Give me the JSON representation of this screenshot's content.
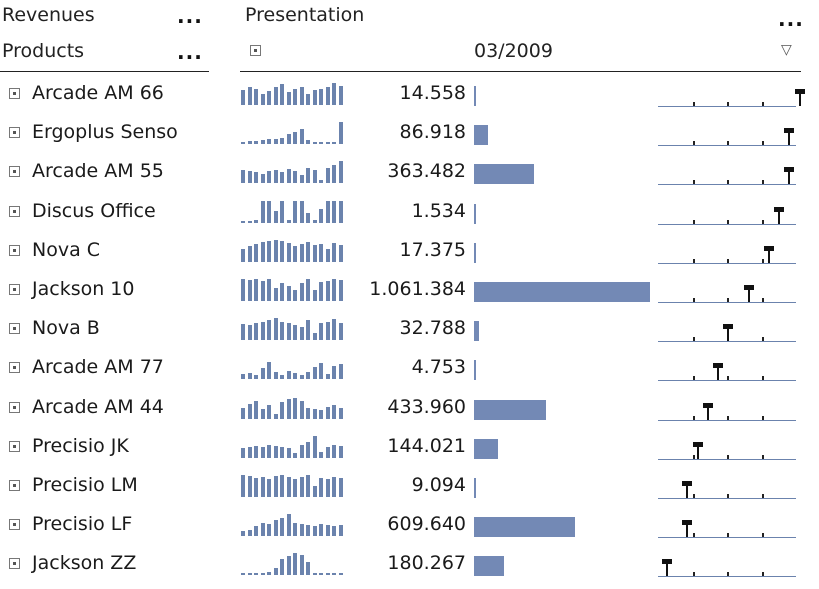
{
  "header": {
    "measure_label": "Revenues",
    "dimension_label": "Products",
    "presentation_label": "Presentation",
    "period_label": "03/2009",
    "more_dots": "...",
    "filter_icon": "▽"
  },
  "colors": {
    "bar": "#7389b5",
    "spark": "#6b83ad",
    "line": "#222222"
  },
  "table": {
    "max_value": 1061384,
    "rows": [
      {
        "label": "Arcade AM 66",
        "value_text": "14.558",
        "value": 14558,
        "rank": 13,
        "spark": [
          0.7,
          0.8,
          0.75,
          0.5,
          0.65,
          0.8,
          0.95,
          0.6,
          0.75,
          0.8,
          0.5,
          0.7,
          0.75,
          0.8,
          1.0,
          0.85
        ]
      },
      {
        "label": "Ergoplus Senso",
        "value_text": "86.918",
        "value": 86918,
        "rank": 12,
        "spark": [
          0.1,
          0.15,
          0.15,
          0.2,
          0.25,
          0.25,
          0.3,
          0.45,
          0.55,
          0.7,
          0.2,
          0.1,
          0.1,
          0.1,
          0.05,
          1.0
        ]
      },
      {
        "label": "Arcade AM 55",
        "value_text": "363.482",
        "value": 363482,
        "rank": 12,
        "spark": [
          0.6,
          0.55,
          0.5,
          0.45,
          0.55,
          0.6,
          0.5,
          0.65,
          0.55,
          0.4,
          0.7,
          0.6,
          0.15,
          0.7,
          0.85,
          1.0
        ]
      },
      {
        "label": "Discus Office",
        "value_text": "1.534",
        "value": 1534,
        "rank": 11,
        "spark": [
          0.0,
          0.0,
          0.1,
          1.0,
          1.0,
          0.55,
          1.0,
          0.1,
          1.0,
          1.0,
          0.45,
          0.1,
          0.6,
          1.0,
          1.0,
          1.0
        ]
      },
      {
        "label": "Nova C",
        "value_text": "17.375",
        "value": 17375,
        "rank": 10,
        "spark": [
          0.6,
          0.7,
          0.8,
          0.9,
          0.95,
          1.0,
          0.95,
          0.85,
          0.7,
          0.8,
          0.9,
          0.75,
          0.8,
          0.6,
          0.85,
          0.75
        ]
      },
      {
        "label": "Jackson 10",
        "value_text": "1.061.384",
        "value": 1061384,
        "rank": 8,
        "spark": [
          1.0,
          0.95,
          1.0,
          0.9,
          1.0,
          0.6,
          0.8,
          0.7,
          0.5,
          0.8,
          1.0,
          0.5,
          0.85,
          0.9,
          1.0,
          0.95
        ]
      },
      {
        "label": "Nova B",
        "value_text": "32.788",
        "value": 32788,
        "rank": 6,
        "spark": [
          0.75,
          0.7,
          0.8,
          0.85,
          0.9,
          1.0,
          0.85,
          0.8,
          0.7,
          0.6,
          0.9,
          0.35,
          0.8,
          0.85,
          0.95,
          0.8
        ]
      },
      {
        "label": "Arcade AM 77",
        "value_text": "4.753",
        "value": 4753,
        "rank": 5,
        "spark": [
          0.25,
          0.3,
          0.2,
          0.5,
          0.8,
          0.35,
          0.2,
          0.4,
          0.3,
          0.2,
          0.35,
          0.55,
          0.75,
          0.25,
          0.6,
          0.7
        ]
      },
      {
        "label": "Arcade AM 44",
        "value_text": "433.960",
        "value": 433960,
        "rank": 4,
        "spark": [
          0.5,
          0.65,
          0.8,
          0.45,
          0.6,
          0.2,
          0.75,
          0.9,
          0.95,
          0.8,
          0.5,
          0.45,
          0.4,
          0.55,
          0.6,
          0.5
        ]
      },
      {
        "label": "Precisio JK",
        "value_text": "144.021",
        "value": 144021,
        "rank": 3,
        "spark": [
          0.45,
          0.5,
          0.55,
          0.5,
          0.6,
          0.55,
          0.5,
          0.45,
          0.2,
          0.6,
          0.7,
          1.0,
          0.25,
          0.5,
          0.6,
          0.55
        ]
      },
      {
        "label": "Precisio LM",
        "value_text": "9.094",
        "value": 9094,
        "rank": 2,
        "spark": [
          1.0,
          0.95,
          0.85,
          0.9,
          0.8,
          0.95,
          1.0,
          0.9,
          0.8,
          0.9,
          1.0,
          0.5,
          0.85,
          0.8,
          0.9,
          0.85
        ]
      },
      {
        "label": "Precisio LF",
        "value_text": "609.640",
        "value": 609640,
        "rank": 2,
        "spark": [
          0.25,
          0.3,
          0.45,
          0.6,
          0.55,
          0.75,
          0.85,
          1.0,
          0.6,
          0.55,
          0.5,
          0.45,
          0.55,
          0.5,
          0.45,
          0.5
        ]
      },
      {
        "label": "Jackson ZZ",
        "value_text": "180.267",
        "value": 180267,
        "rank": 0,
        "spark": [
          0.05,
          0.05,
          0.1,
          0.1,
          0.15,
          0.35,
          0.75,
          0.9,
          1.0,
          0.95,
          0.6,
          0.1,
          0.05,
          0.1,
          0.05,
          0.05
        ]
      }
    ]
  }
}
